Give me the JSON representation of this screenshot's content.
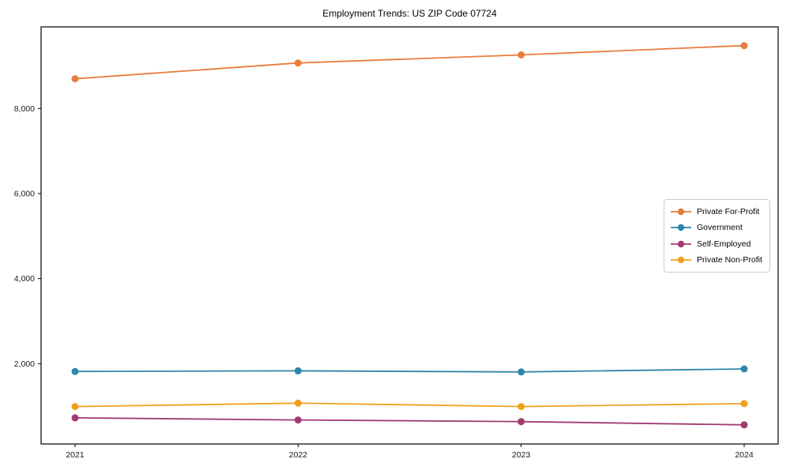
{
  "chart_data": {
    "type": "line",
    "title": "Employment Trends: US ZIP Code 07724",
    "xlabel": "",
    "ylabel": "",
    "categories": [
      "2021",
      "2022",
      "2023",
      "2024"
    ],
    "series": [
      {
        "name": "Private For-Profit",
        "color": "#E87D3E",
        "values": [
          8700,
          9070,
          9260,
          9480
        ]
      },
      {
        "name": "Government",
        "color": "#2E86AB",
        "values": [
          1815,
          1830,
          1805,
          1875
        ]
      },
      {
        "name": "Self-Employed",
        "color": "#A23B72",
        "values": [
          725,
          675,
          635,
          560
        ]
      },
      {
        "name": "Private Non-Profit",
        "color": "#F0A11E",
        "values": [
          990,
          1070,
          990,
          1060
        ]
      }
    ],
    "ylim": [
      110,
      9920
    ],
    "yticks": [
      2000,
      4000,
      6000,
      8000
    ],
    "ytick_labels": [
      "2,000",
      "4,000",
      "6,000",
      "8,000"
    ],
    "grid": false,
    "legend_position": "right-middle",
    "axis_color": "#000000",
    "tick_label_color": "#1a1a1a"
  }
}
